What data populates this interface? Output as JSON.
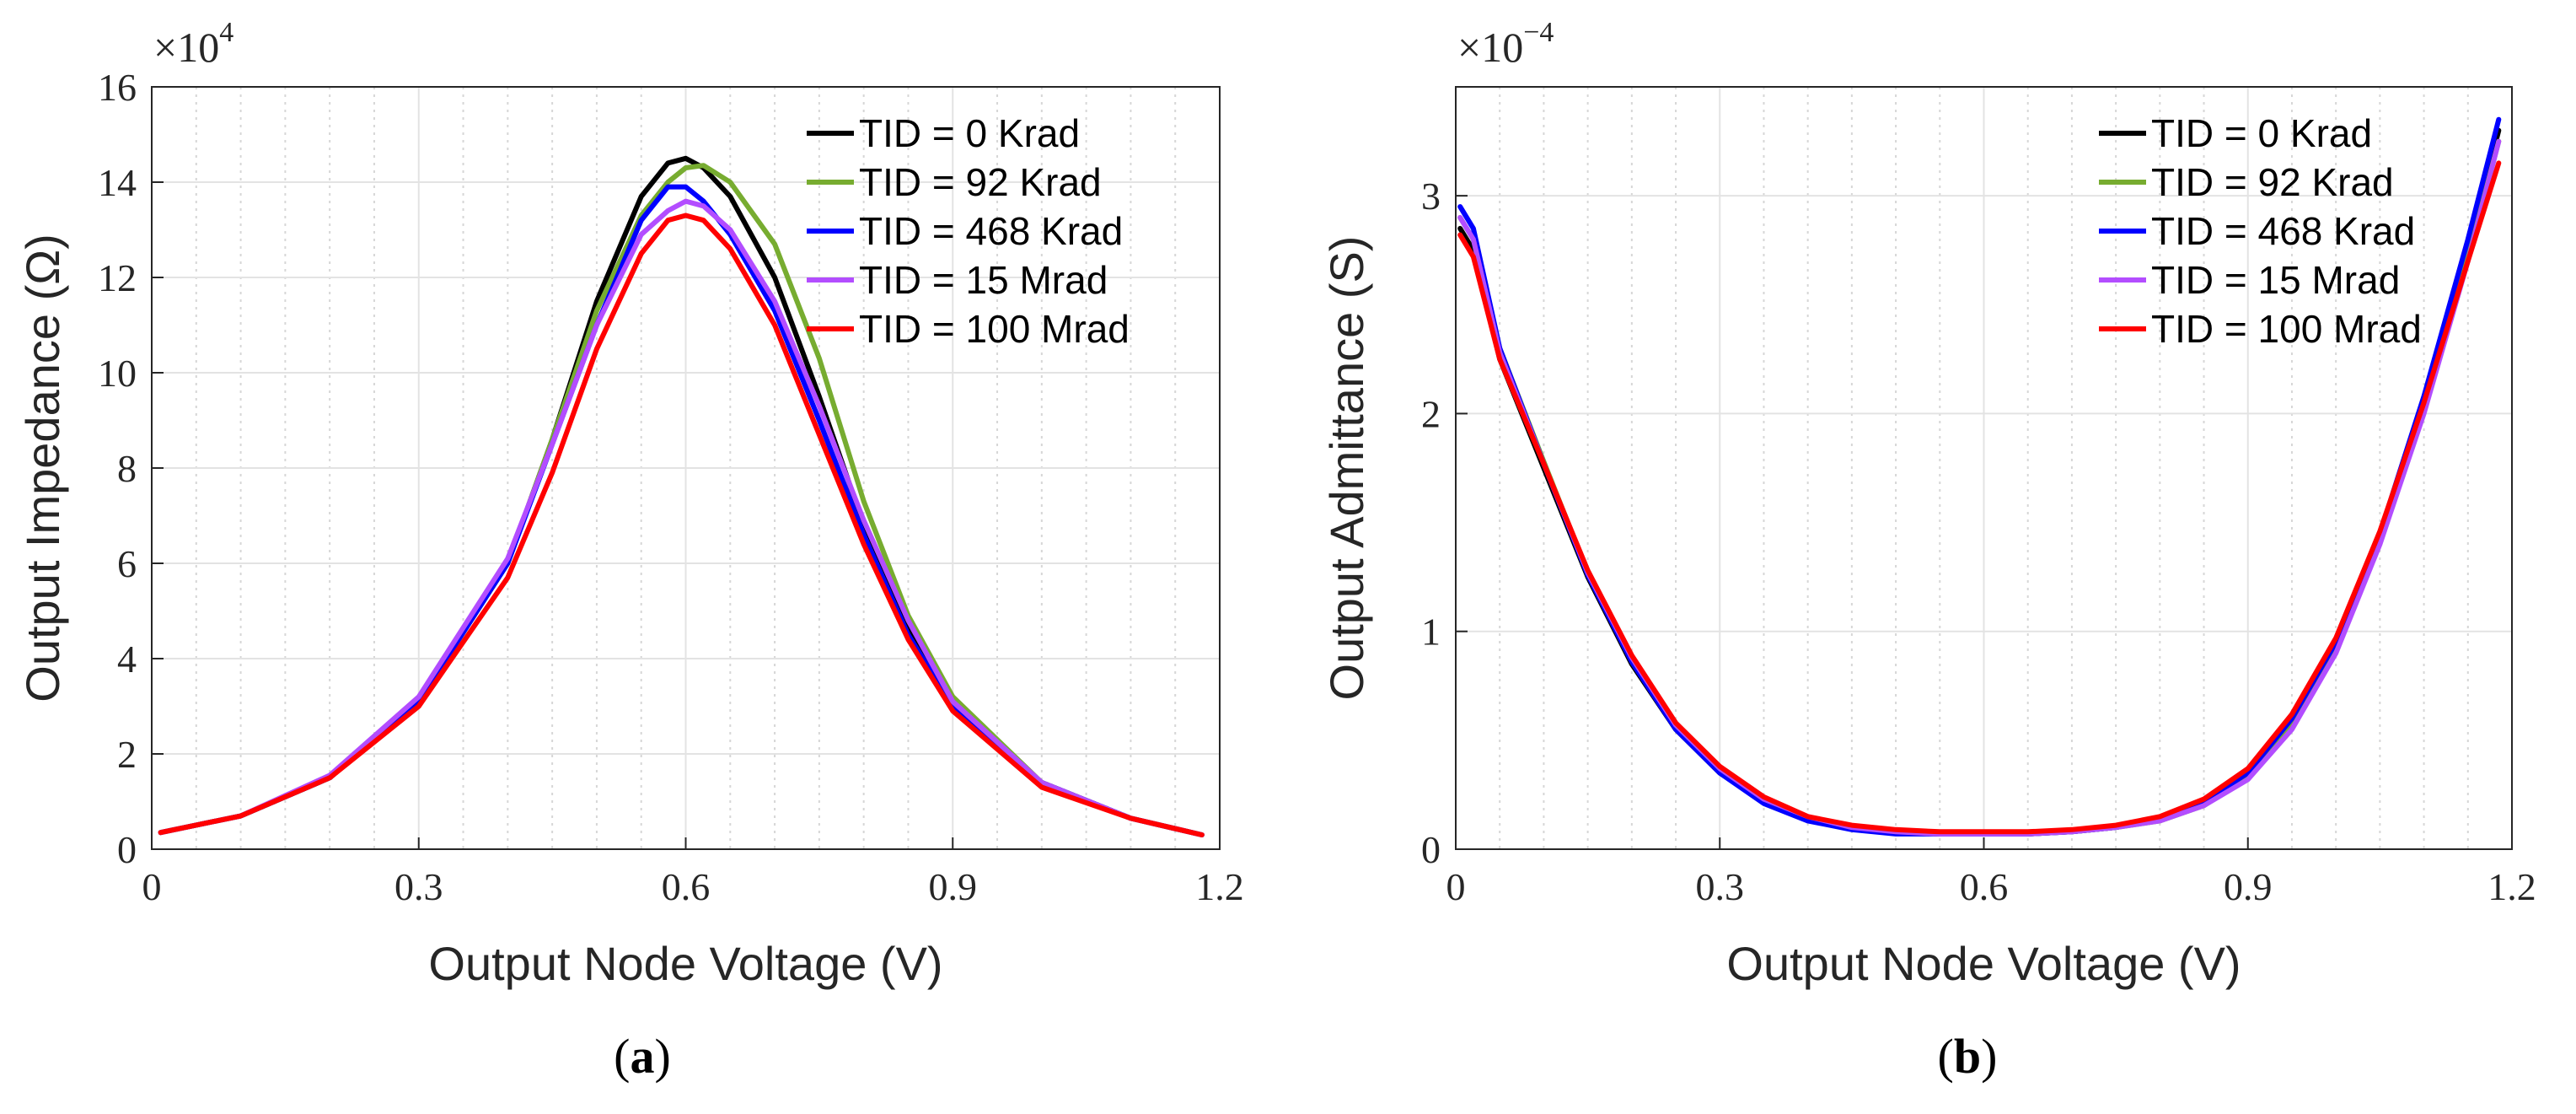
{
  "chart_data": [
    {
      "type": "line",
      "panel": "a",
      "caption": {
        "open": "(",
        "letter": "a",
        "close": ")"
      },
      "xlabel": "Output Node Voltage (V)",
      "ylabel": "Output Impedance (Ω)",
      "xlim": [
        0,
        1.2
      ],
      "ylim": [
        0,
        16
      ],
      "xticks": [
        0,
        0.3,
        0.6,
        0.9,
        1.2
      ],
      "xtick_labels": [
        "0",
        "0.3",
        "0.6",
        "0.9",
        "1.2"
      ],
      "yticks": [
        0,
        2,
        4,
        6,
        8,
        10,
        12,
        14,
        16
      ],
      "ytick_labels": [
        "0",
        "2",
        "4",
        "6",
        "8",
        "10",
        "12",
        "14",
        "16"
      ],
      "exponent": {
        "base": "×10",
        "power": "4"
      },
      "grid": true,
      "legend_position": "top-right",
      "series": [
        {
          "name": "TID = 0 Krad",
          "color": "#000000",
          "x": [
            0.01,
            0.1,
            0.2,
            0.3,
            0.4,
            0.45,
            0.5,
            0.55,
            0.58,
            0.6,
            0.62,
            0.65,
            0.7,
            0.75,
            0.8,
            0.85,
            0.9,
            1.0,
            1.1,
            1.18
          ],
          "y": [
            0.35,
            0.7,
            1.5,
            3.1,
            6.0,
            8.6,
            11.5,
            13.7,
            14.4,
            14.5,
            14.3,
            13.7,
            12.0,
            9.5,
            6.8,
            4.6,
            3.0,
            1.4,
            0.65,
            0.3
          ]
        },
        {
          "name": "TID = 92 Krad",
          "color": "#77ac30",
          "x": [
            0.01,
            0.1,
            0.2,
            0.3,
            0.4,
            0.45,
            0.5,
            0.55,
            0.58,
            0.6,
            0.62,
            0.65,
            0.7,
            0.75,
            0.8,
            0.85,
            0.9,
            1.0,
            1.1,
            1.18
          ],
          "y": [
            0.35,
            0.7,
            1.5,
            3.1,
            6.0,
            8.6,
            11.3,
            13.3,
            14.0,
            14.3,
            14.35,
            14.0,
            12.7,
            10.3,
            7.3,
            4.9,
            3.2,
            1.4,
            0.65,
            0.3
          ]
        },
        {
          "name": "TID = 468 Krad",
          "color": "#0000ff",
          "x": [
            0.01,
            0.1,
            0.2,
            0.3,
            0.4,
            0.45,
            0.5,
            0.55,
            0.58,
            0.6,
            0.62,
            0.65,
            0.7,
            0.75,
            0.8,
            0.85,
            0.9,
            1.0,
            1.1,
            1.18
          ],
          "y": [
            0.35,
            0.7,
            1.5,
            3.1,
            6.0,
            8.5,
            11.0,
            13.2,
            13.9,
            13.9,
            13.6,
            12.9,
            11.3,
            9.0,
            6.6,
            4.5,
            3.0,
            1.4,
            0.65,
            0.3
          ]
        },
        {
          "name": "TID = 15 Mrad",
          "color": "#b34dff",
          "x": [
            0.01,
            0.1,
            0.2,
            0.3,
            0.4,
            0.45,
            0.5,
            0.55,
            0.58,
            0.6,
            0.62,
            0.65,
            0.7,
            0.75,
            0.8,
            0.85,
            0.9,
            1.0,
            1.1,
            1.18
          ],
          "y": [
            0.35,
            0.7,
            1.55,
            3.2,
            6.1,
            8.5,
            11.0,
            12.9,
            13.4,
            13.6,
            13.5,
            13.0,
            11.5,
            9.3,
            6.9,
            4.8,
            3.1,
            1.4,
            0.65,
            0.3
          ]
        },
        {
          "name": "TID = 100 Mrad",
          "color": "#ff0000",
          "x": [
            0.01,
            0.1,
            0.2,
            0.3,
            0.4,
            0.45,
            0.5,
            0.55,
            0.58,
            0.6,
            0.62,
            0.65,
            0.7,
            0.75,
            0.8,
            0.85,
            0.9,
            1.0,
            1.1,
            1.18
          ],
          "y": [
            0.35,
            0.7,
            1.5,
            3.0,
            5.7,
            7.9,
            10.5,
            12.5,
            13.2,
            13.3,
            13.2,
            12.6,
            11.0,
            8.7,
            6.4,
            4.4,
            2.9,
            1.3,
            0.65,
            0.3
          ]
        }
      ]
    },
    {
      "type": "line",
      "panel": "b",
      "caption": {
        "open": "(",
        "letter": "b",
        "close": ")"
      },
      "xlabel": "Output Node Voltage (V)",
      "ylabel": "Output Admittance (S)",
      "xlim": [
        0,
        1.2
      ],
      "ylim": [
        0,
        3.5
      ],
      "xticks": [
        0,
        0.3,
        0.6,
        0.9,
        1.2
      ],
      "xtick_labels": [
        "0",
        "0.3",
        "0.6",
        "0.9",
        "1.2"
      ],
      "yticks": [
        0,
        1,
        2,
        3
      ],
      "ytick_labels": [
        "0",
        "1",
        "2",
        "3"
      ],
      "exponent": {
        "base": "×10",
        "power": "−4"
      },
      "grid": true,
      "legend_position": "top-right",
      "series": [
        {
          "name": "TID = 0 Krad",
          "color": "#000000",
          "x": [
            0.005,
            0.02,
            0.05,
            0.1,
            0.15,
            0.2,
            0.25,
            0.3,
            0.35,
            0.4,
            0.45,
            0.5,
            0.55,
            0.6,
            0.65,
            0.7,
            0.75,
            0.8,
            0.85,
            0.9,
            0.95,
            1.0,
            1.05,
            1.1,
            1.15,
            1.185
          ],
          "y": [
            2.85,
            2.75,
            2.25,
            1.75,
            1.25,
            0.85,
            0.55,
            0.35,
            0.22,
            0.14,
            0.1,
            0.08,
            0.07,
            0.07,
            0.07,
            0.08,
            0.1,
            0.14,
            0.22,
            0.35,
            0.6,
            0.95,
            1.45,
            2.05,
            2.75,
            3.3
          ]
        },
        {
          "name": "TID = 92 Krad",
          "color": "#77ac30",
          "x": [
            0.005,
            0.02,
            0.05,
            0.1,
            0.15,
            0.2,
            0.25,
            0.3,
            0.35,
            0.4,
            0.45,
            0.5,
            0.55,
            0.6,
            0.65,
            0.7,
            0.75,
            0.8,
            0.85,
            0.9,
            0.95,
            1.0,
            1.05,
            1.1,
            1.15,
            1.185
          ],
          "y": [
            2.9,
            2.8,
            2.3,
            1.78,
            1.27,
            0.87,
            0.56,
            0.36,
            0.22,
            0.14,
            0.1,
            0.08,
            0.07,
            0.07,
            0.07,
            0.08,
            0.1,
            0.13,
            0.2,
            0.33,
            0.57,
            0.92,
            1.42,
            2.02,
            2.72,
            3.25
          ]
        },
        {
          "name": "TID = 468 Krad",
          "color": "#0000ff",
          "x": [
            0.005,
            0.02,
            0.05,
            0.1,
            0.15,
            0.2,
            0.25,
            0.3,
            0.35,
            0.4,
            0.45,
            0.5,
            0.55,
            0.6,
            0.65,
            0.7,
            0.75,
            0.8,
            0.85,
            0.9,
            0.95,
            1.0,
            1.05,
            1.1,
            1.15,
            1.185
          ],
          "y": [
            2.95,
            2.85,
            2.3,
            1.77,
            1.26,
            0.86,
            0.55,
            0.35,
            0.21,
            0.13,
            0.09,
            0.07,
            0.07,
            0.07,
            0.07,
            0.08,
            0.1,
            0.14,
            0.22,
            0.35,
            0.6,
            0.95,
            1.45,
            2.08,
            2.8,
            3.35
          ]
        },
        {
          "name": "TID = 15 Mrad",
          "color": "#b34dff",
          "x": [
            0.005,
            0.02,
            0.05,
            0.1,
            0.15,
            0.2,
            0.25,
            0.3,
            0.35,
            0.4,
            0.45,
            0.5,
            0.55,
            0.6,
            0.65,
            0.7,
            0.75,
            0.8,
            0.85,
            0.9,
            0.95,
            1.0,
            1.05,
            1.1,
            1.15,
            1.185
          ],
          "y": [
            2.9,
            2.8,
            2.28,
            1.77,
            1.27,
            0.88,
            0.57,
            0.37,
            0.23,
            0.15,
            0.1,
            0.08,
            0.07,
            0.07,
            0.07,
            0.08,
            0.1,
            0.13,
            0.2,
            0.32,
            0.55,
            0.9,
            1.4,
            2.0,
            2.7,
            3.25
          ]
        },
        {
          "name": "TID = 100 Mrad",
          "color": "#ff0000",
          "x": [
            0.005,
            0.02,
            0.05,
            0.1,
            0.15,
            0.2,
            0.25,
            0.3,
            0.35,
            0.4,
            0.45,
            0.5,
            0.55,
            0.6,
            0.65,
            0.7,
            0.75,
            0.8,
            0.85,
            0.9,
            0.95,
            1.0,
            1.05,
            1.1,
            1.15,
            1.185
          ],
          "y": [
            2.82,
            2.72,
            2.25,
            1.77,
            1.28,
            0.89,
            0.58,
            0.38,
            0.24,
            0.15,
            0.11,
            0.09,
            0.08,
            0.08,
            0.08,
            0.09,
            0.11,
            0.15,
            0.23,
            0.37,
            0.62,
            0.97,
            1.46,
            2.05,
            2.7,
            3.15
          ]
        }
      ]
    }
  ]
}
